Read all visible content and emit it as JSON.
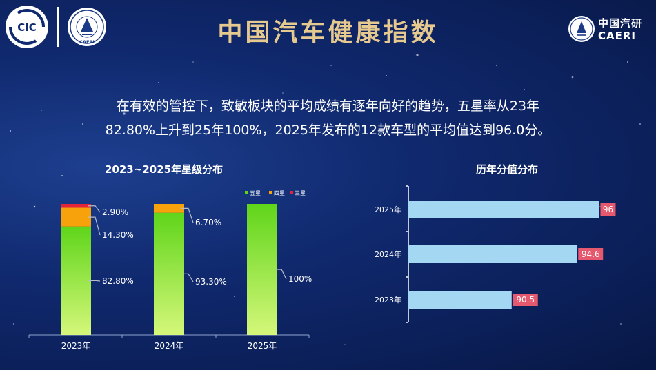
{
  "page": {
    "title": "中国汽车健康指数",
    "summary_line1": "在有效的管控下，致敏板块的平均成绩有逐年向好的趋势，五星率从23年",
    "summary_line2": "82.80%上升到25年100%，2025年发布的12款车型的平均值达到96.0分。"
  },
  "logos": {
    "left_badge_text": "CIC",
    "caeri_badge_text": "CAERI",
    "brand_cn": "中国汽研",
    "brand_en": "CAERI"
  },
  "colors": {
    "five_star_top": "#5fd51a",
    "five_star_bottom": "#d5f77a",
    "four_star": "#f7a20b",
    "three_star": "#e3253b",
    "score_bar": "#a4d7f2",
    "score_label_bg": "#e5586e",
    "title_gold": "#e6c98f"
  },
  "chart_data": [
    {
      "type": "bar",
      "stacked": true,
      "title": "2023~2025年星级分布",
      "categories": [
        "2023年",
        "2024年",
        "2025年"
      ],
      "series": [
        {
          "name": "五星",
          "values": [
            82.8,
            93.3,
            100
          ],
          "labels": [
            "82.80%",
            "93.30%",
            "100%"
          ]
        },
        {
          "name": "四星",
          "values": [
            14.3,
            6.7,
            0
          ],
          "labels": [
            "14.30%",
            "6.70%",
            ""
          ]
        },
        {
          "name": "三星",
          "values": [
            2.9,
            0,
            0
          ],
          "labels": [
            "2.90%",
            "",
            ""
          ]
        }
      ],
      "ylim": [
        0,
        100
      ],
      "legend": "top-right",
      "grid": false
    },
    {
      "type": "bar",
      "orientation": "horizontal",
      "title": "历年分值分布",
      "categories": [
        "2025年",
        "2024年",
        "2023年"
      ],
      "values": [
        96,
        94.6,
        90.5
      ],
      "labels": [
        "96",
        "94.6",
        "90.5"
      ],
      "xlim": [
        84,
        96.5
      ],
      "grid": false
    }
  ]
}
